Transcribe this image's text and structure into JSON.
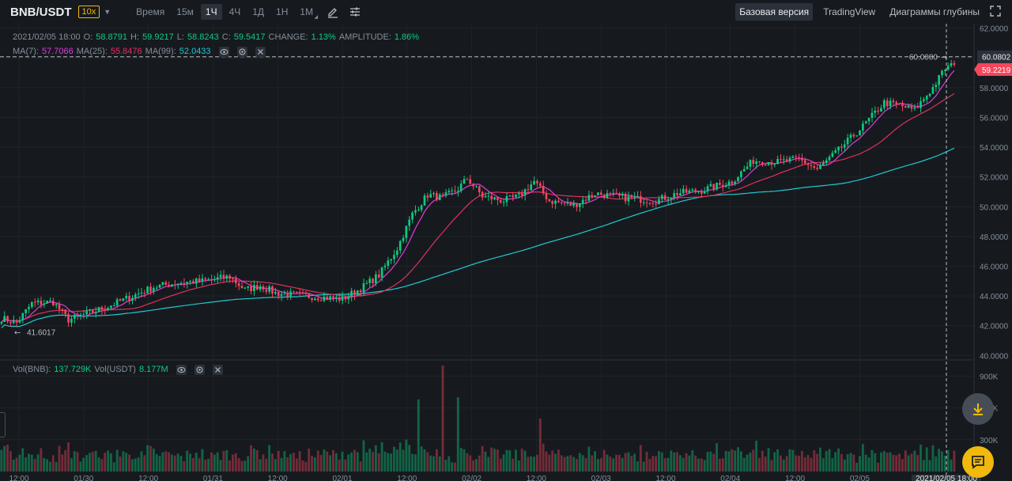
{
  "toolbar": {
    "symbol": "BNB/USDT",
    "leverage": "10x",
    "timeframes": [
      "Время",
      "15м",
      "1Ч",
      "4Ч",
      "1Д",
      "1Н",
      "1М"
    ],
    "active_timeframe": "1Ч",
    "views": [
      "Базовая версия",
      "TradingView",
      "Диаграммы глубины"
    ],
    "active_view": "Базовая версия"
  },
  "ohlc": {
    "date": "2021/02/05 18:00",
    "o_label": "O:",
    "o": "58.8791",
    "h_label": "H:",
    "h": "59.9217",
    "l_label": "L:",
    "l": "58.8243",
    "c_label": "C:",
    "c": "59.5417",
    "change_label": "CHANGE:",
    "change": "1.13%",
    "amplitude_label": "AMPLITUDE:",
    "amplitude": "1.86%"
  },
  "ma": {
    "ma7_label": "MA(7):",
    "ma7": "57.7066",
    "ma25_label": "MA(25):",
    "ma25": "55.8476",
    "ma99_label": "MA(99):",
    "ma99": "52.0433"
  },
  "vol": {
    "bnb_label": "Vol(BNB):",
    "bnb": "137.729K",
    "usdt_label": "Vol(USDT)",
    "usdt": "8.177M"
  },
  "chart_data": {
    "type": "candlestick",
    "y_ticks": [
      "62.0000",
      "60.0000",
      "58.0000",
      "56.0000",
      "54.0000",
      "52.0000",
      "50.0000",
      "48.0000",
      "46.0000",
      "44.0000",
      "42.0000",
      "40.0000"
    ],
    "y_range": [
      39.7,
      62.3
    ],
    "vol_ticks": [
      "900K",
      "600K",
      "300K"
    ],
    "vol_range": [
      0,
      1000000
    ],
    "x_ticks": [
      "12:00",
      "01/30",
      "12:00",
      "01/31",
      "12:00",
      "02/01",
      "12:00",
      "02/02",
      "12:00",
      "02/03",
      "12:00",
      "02/04",
      "12:00",
      "02/05"
    ],
    "crosshair_time": "2021/02/05 18:00",
    "crosshair_price": "60.0802",
    "last_price": "59.2219",
    "max_label": "60.0000",
    "min_label": "41.6017",
    "anchors": [
      [
        0,
        42.5
      ],
      [
        5,
        42.2
      ],
      [
        10,
        43.5
      ],
      [
        17,
        43.6
      ],
      [
        22,
        42.4
      ],
      [
        28,
        42.8
      ],
      [
        35,
        43.3
      ],
      [
        42,
        43.9
      ],
      [
        50,
        44.6
      ],
      [
        58,
        44.9
      ],
      [
        66,
        45.0
      ],
      [
        75,
        45.3
      ],
      [
        80,
        44.4
      ],
      [
        85,
        44.7
      ],
      [
        90,
        44.2
      ],
      [
        100,
        44.0
      ],
      [
        112,
        43.8
      ],
      [
        118,
        44.5
      ],
      [
        124,
        45.4
      ],
      [
        130,
        47.2
      ],
      [
        135,
        49.5
      ],
      [
        140,
        50.8
      ],
      [
        145,
        50.6
      ],
      [
        150,
        51.2
      ],
      [
        153,
        51.9
      ],
      [
        158,
        50.7
      ],
      [
        165,
        50.4
      ],
      [
        170,
        50.7
      ],
      [
        175,
        51.7
      ],
      [
        180,
        50.4
      ],
      [
        188,
        50.1
      ],
      [
        195,
        50.9
      ],
      [
        205,
        50.6
      ],
      [
        215,
        50.4
      ],
      [
        222,
        50.9
      ],
      [
        230,
        51.1
      ],
      [
        240,
        51.7
      ],
      [
        247,
        53.1
      ],
      [
        255,
        53.0
      ],
      [
        262,
        53.2
      ],
      [
        268,
        52.5
      ],
      [
        275,
        53.8
      ],
      [
        283,
        55.4
      ],
      [
        290,
        57.0
      ],
      [
        295,
        56.8
      ],
      [
        300,
        56.5
      ],
      [
        306,
        58.0
      ],
      [
        310,
        59.3
      ],
      [
        313,
        59.54
      ]
    ],
    "volume_spikes": [
      [
        137,
        680000
      ],
      [
        145,
        1000000
      ],
      [
        150,
        700000
      ],
      [
        177,
        500000
      ],
      [
        248,
        290000
      ]
    ]
  }
}
